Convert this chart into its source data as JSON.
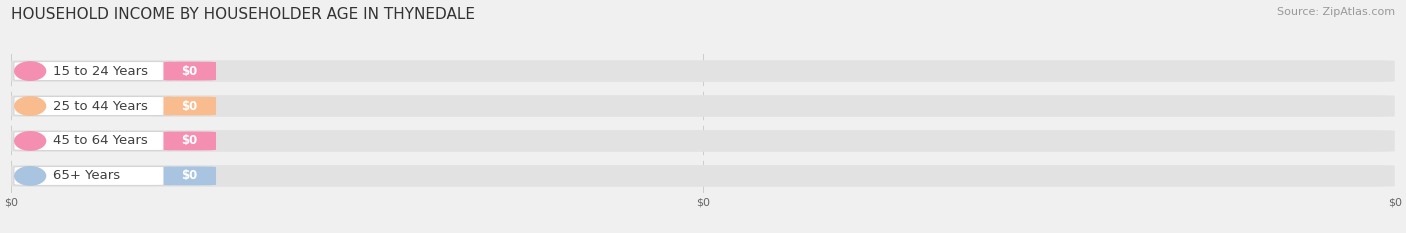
{
  "title": "HOUSEHOLD INCOME BY HOUSEHOLDER AGE IN THYNEDALE",
  "source": "Source: ZipAtlas.com",
  "categories": [
    "15 to 24 Years",
    "25 to 44 Years",
    "45 to 64 Years",
    "65+ Years"
  ],
  "values": [
    0,
    0,
    0,
    0
  ],
  "bar_colors": [
    "#f48fb1",
    "#f9bc8f",
    "#f48fb1",
    "#a8c4e0"
  ],
  "bg_color": "#f0f0f0",
  "bar_bg_color": "#e2e2e2",
  "title_fontsize": 11,
  "source_fontsize": 8,
  "label_fontsize": 9.5,
  "value_fontsize": 8.5
}
